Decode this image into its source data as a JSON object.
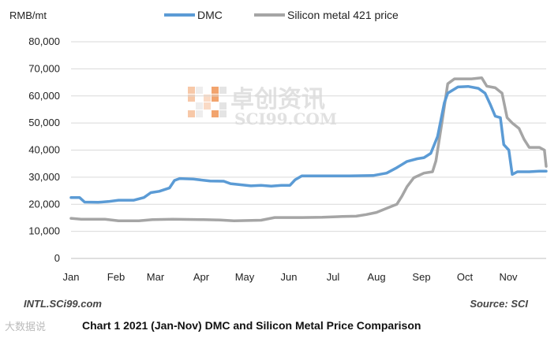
{
  "chart_data": {
    "type": "line",
    "unit_label": "RMB/mt",
    "x": [
      "Jan",
      "Feb",
      "Mar",
      "Apr",
      "May",
      "Jun",
      "Jul",
      "Aug",
      "Sep",
      "Oct",
      "Nov"
    ],
    "ylim": [
      0,
      80000
    ],
    "yticks": [
      "0",
      "10,000",
      "20,000",
      "30,000",
      "40,000",
      "50,000",
      "60,000",
      "70,000",
      "80,000"
    ],
    "legend_position": "top",
    "grid": "horizontal",
    "series": [
      {
        "name": "DMC",
        "color": "#5b9bd5",
        "points": [
          [
            0.0,
            22500
          ],
          [
            0.25,
            22500
          ],
          [
            0.4,
            20800
          ],
          [
            0.8,
            20700
          ],
          [
            1.1,
            21000
          ],
          [
            1.4,
            21500
          ],
          [
            1.85,
            21500
          ],
          [
            2.15,
            22500
          ],
          [
            2.35,
            24300
          ],
          [
            2.6,
            24800
          ],
          [
            2.9,
            26000
          ],
          [
            3.05,
            28800
          ],
          [
            3.2,
            29500
          ],
          [
            3.6,
            29300
          ],
          [
            4.1,
            28600
          ],
          [
            4.5,
            28500
          ],
          [
            4.7,
            27600
          ],
          [
            5.0,
            27200
          ],
          [
            5.3,
            26800
          ],
          [
            5.6,
            27000
          ],
          [
            5.9,
            26700
          ],
          [
            6.2,
            27000
          ],
          [
            6.45,
            27000
          ],
          [
            6.6,
            29000
          ],
          [
            6.8,
            30500
          ],
          [
            7.4,
            30500
          ],
          [
            8.2,
            30500
          ],
          [
            8.9,
            30600
          ],
          [
            9.3,
            31500
          ],
          [
            9.6,
            33500
          ],
          [
            9.9,
            35800
          ],
          [
            10.2,
            36800
          ],
          [
            10.4,
            37200
          ],
          [
            10.6,
            38800
          ],
          [
            10.8,
            45000
          ],
          [
            11.0,
            57500
          ],
          [
            11.1,
            61000
          ],
          [
            11.4,
            63300
          ],
          [
            11.7,
            63500
          ],
          [
            12.0,
            62800
          ],
          [
            12.2,
            61000
          ],
          [
            12.35,
            57000
          ],
          [
            12.5,
            52500
          ],
          [
            12.65,
            52000
          ],
          [
            12.75,
            42000
          ],
          [
            12.9,
            40000
          ],
          [
            13.0,
            31000
          ],
          [
            13.15,
            32000
          ],
          [
            13.5,
            32000
          ],
          [
            13.8,
            32200
          ],
          [
            14.0,
            32200
          ]
        ]
      },
      {
        "name": "Silicon metal 421 price",
        "color": "#a5a5a5",
        "points": [
          [
            0.0,
            14800
          ],
          [
            0.3,
            14500
          ],
          [
            1.0,
            14500
          ],
          [
            1.4,
            13900
          ],
          [
            2.0,
            13900
          ],
          [
            2.4,
            14300
          ],
          [
            3.0,
            14500
          ],
          [
            3.9,
            14300
          ],
          [
            4.4,
            14200
          ],
          [
            4.8,
            13900
          ],
          [
            5.6,
            14100
          ],
          [
            6.0,
            15100
          ],
          [
            6.8,
            15100
          ],
          [
            7.4,
            15200
          ],
          [
            7.8,
            15400
          ],
          [
            8.0,
            15500
          ],
          [
            8.4,
            15600
          ],
          [
            8.7,
            16200
          ],
          [
            9.0,
            17000
          ],
          [
            9.3,
            18500
          ],
          [
            9.6,
            20000
          ],
          [
            9.75,
            23000
          ],
          [
            9.9,
            26500
          ],
          [
            10.1,
            29800
          ],
          [
            10.4,
            31500
          ],
          [
            10.65,
            32000
          ],
          [
            10.75,
            36000
          ],
          [
            10.95,
            52000
          ],
          [
            11.1,
            64500
          ],
          [
            11.3,
            66300
          ],
          [
            11.8,
            66300
          ],
          [
            12.1,
            66700
          ],
          [
            12.25,
            63600
          ],
          [
            12.5,
            63000
          ],
          [
            12.7,
            61000
          ],
          [
            12.85,
            52000
          ],
          [
            13.0,
            50000
          ],
          [
            13.2,
            48000
          ],
          [
            13.35,
            44000
          ],
          [
            13.5,
            41000
          ],
          [
            13.8,
            41000
          ],
          [
            13.95,
            40000
          ],
          [
            14.0,
            34000
          ]
        ]
      }
    ]
  },
  "watermark": {
    "chinese": "卓创资讯",
    "latin": "SCI99.COM"
  },
  "footer": {
    "left": "INTL.SCi99.com",
    "right": "Source: SCI",
    "caption": "Chart 1 2021 (Jan-Nov) DMC and Silicon Metal Price Comparison",
    "corner": "大数据说"
  }
}
